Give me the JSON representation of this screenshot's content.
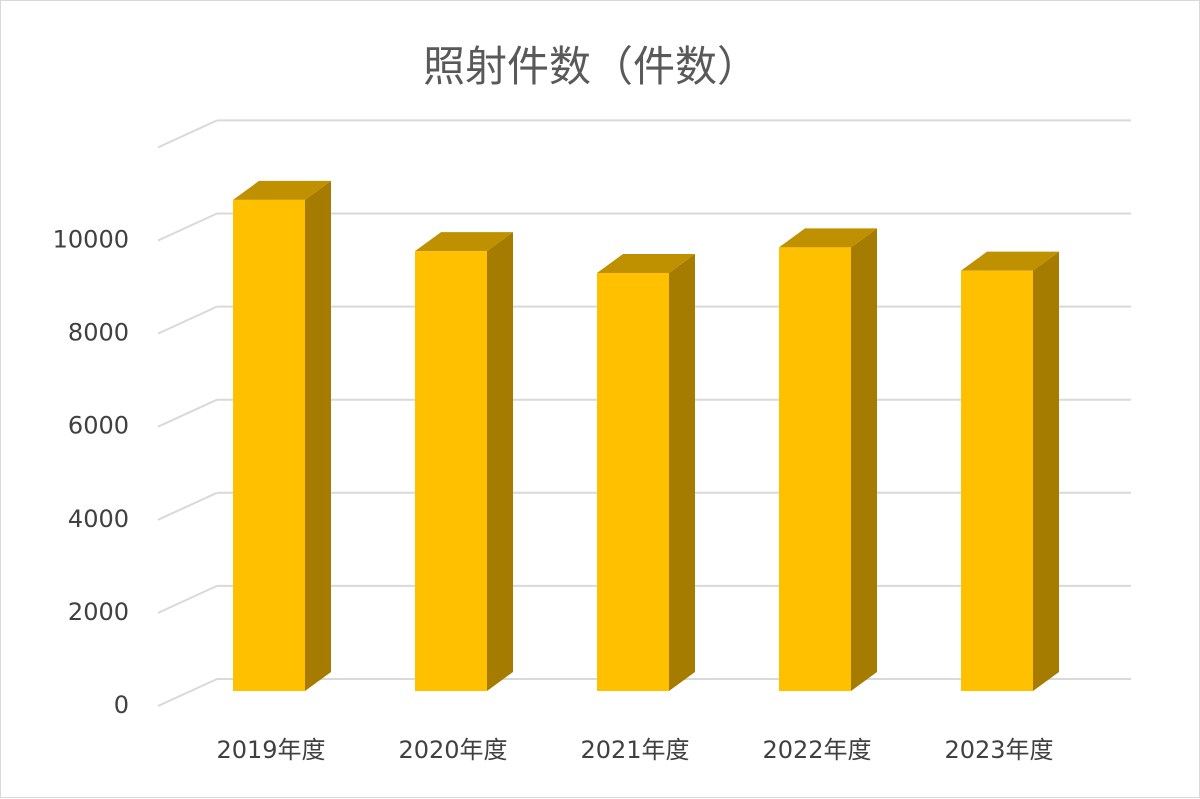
{
  "chart_data": {
    "type": "bar",
    "title": "照射件数（件数）",
    "categories": [
      "2019年度",
      "2020年度",
      "2021年度",
      "2022年度",
      "2023年度"
    ],
    "series": [
      {
        "values": [
          10550,
          9450,
          8980,
          9530,
          9030
        ]
      }
    ],
    "yticks": [
      "0",
      "2000",
      "4000",
      "6000",
      "8000",
      "10000"
    ],
    "ylim": [
      0,
      10000
    ],
    "grid": true,
    "legend": "none",
    "colors": {
      "bar_front": "#FFC000",
      "bar_side": "#A67C00",
      "bar_top": "#BF9000",
      "grid": "#d9d9d9",
      "text": "#404040"
    }
  }
}
